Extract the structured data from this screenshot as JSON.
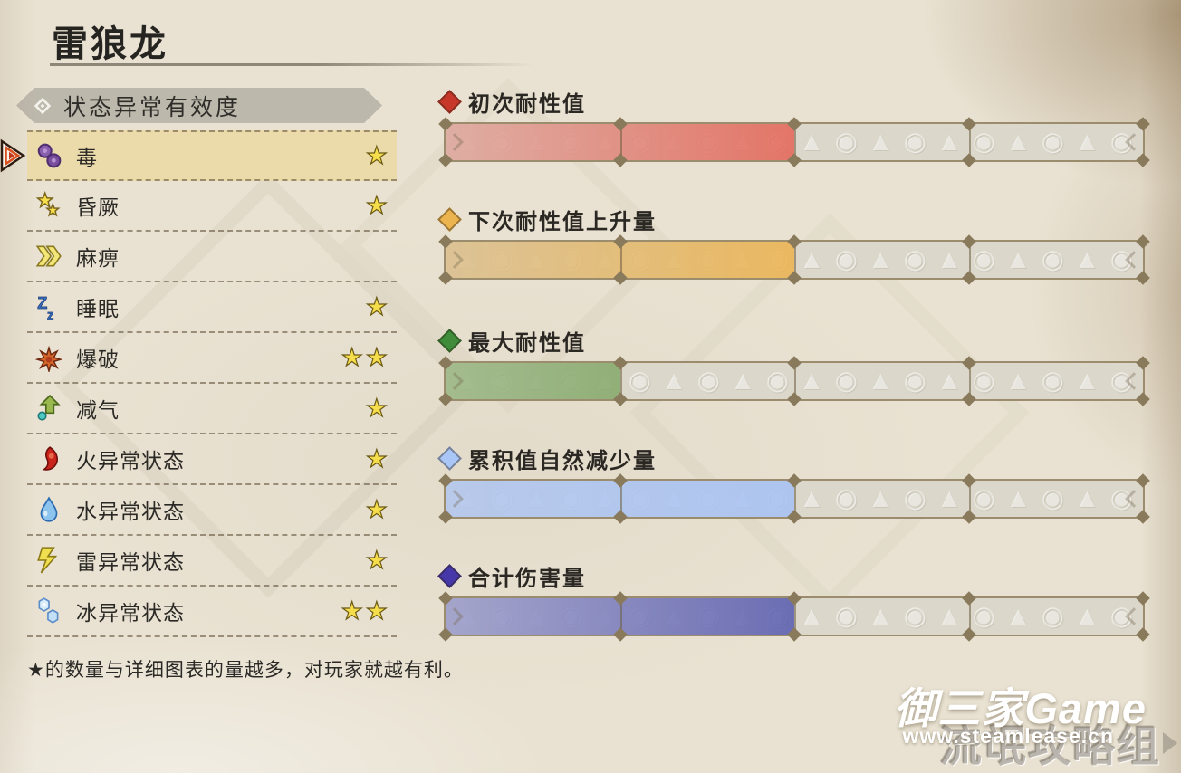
{
  "page": {
    "title": "雷狼龙",
    "section_header": "状态异常有效度",
    "footer_note": "★的数量与详细图表的量越多，对玩家就越有利。"
  },
  "glyphs": {
    "star": "★",
    "gauge_pattern": "▲◉▲◉▲◉▲◉▲◉▲◉▲◉▲◉▲◉▲◉▲◉▲◉▲◉▲◉▲◉▲◉▲◉▲◉▲◉▲◉▲◉▲◉"
  },
  "ailments": [
    {
      "label": "毒",
      "icon": "poison-icon",
      "stars": 1,
      "selected": true
    },
    {
      "label": "昏厥",
      "icon": "stun-icon",
      "stars": 1,
      "selected": false
    },
    {
      "label": "麻痹",
      "icon": "paralysis-icon",
      "stars": 0,
      "selected": false
    },
    {
      "label": "睡眠",
      "icon": "sleep-icon",
      "stars": 1,
      "selected": false
    },
    {
      "label": "爆破",
      "icon": "blast-icon",
      "stars": 2,
      "selected": false
    },
    {
      "label": "减气",
      "icon": "exhaust-icon",
      "stars": 1,
      "selected": false
    },
    {
      "label": "火异常状态",
      "icon": "fire-icon",
      "stars": 1,
      "selected": false
    },
    {
      "label": "水异常状态",
      "icon": "water-icon",
      "stars": 1,
      "selected": false
    },
    {
      "label": "雷异常状态",
      "icon": "thunder-icon",
      "stars": 1,
      "selected": false
    },
    {
      "label": "冰异常状态",
      "icon": "ice-icon",
      "stars": 2,
      "selected": false
    }
  ],
  "gauges": [
    {
      "label": "初次耐性值",
      "color": "#c8382a",
      "fill_percent": 50,
      "fill_from": "#dfa89e",
      "fill_to": "#e4685a"
    },
    {
      "label": "下次耐性值上升量",
      "color": "#ecb44e",
      "fill_percent": 50,
      "fill_from": "#dcc08e",
      "fill_to": "#ecb452"
    },
    {
      "label": "最大耐性值",
      "color": "#3f8c3b",
      "fill_percent": 25,
      "fill_from": "#9cb886",
      "fill_to": "#87a96c"
    },
    {
      "label": "累积值自然减少量",
      "color": "#a9c6f6",
      "fill_percent": 50,
      "fill_from": "#b3c7ee",
      "fill_to": "#a7c2f4"
    },
    {
      "label": "合计伤害量",
      "color": "#4638a8",
      "fill_percent": 50,
      "fill_from": "#9d9ecb",
      "fill_to": "#5c5fb0"
    }
  ],
  "chart_data": {
    "type": "bar",
    "title": "状态异常有效度 — 毒（雷狼龙）",
    "categories": [
      "初次耐性值",
      "下次耐性值上升量",
      "最大耐性值",
      "累积值自然减少量",
      "合计伤害量"
    ],
    "values": [
      2,
      2,
      1,
      2,
      2
    ],
    "xlabel": "",
    "ylabel": "",
    "xlim": [
      0,
      4
    ],
    "grid": "4 segments per gauge, divider ticks at each quarter",
    "legend_position": "diamond swatch left of each gauge label",
    "star_ratings": {
      "毒": 1,
      "昏厥": 1,
      "麻痹": 0,
      "睡眠": 1,
      "爆破": 2,
      "减气": 1,
      "火异常状态": 1,
      "水异常状态": 1,
      "雷异常状态": 1,
      "冰异常状态": 2
    }
  },
  "watermark": {
    "brand": "御三家Game",
    "url": "www.steamlease.cn",
    "group": "流氓攻略组"
  }
}
